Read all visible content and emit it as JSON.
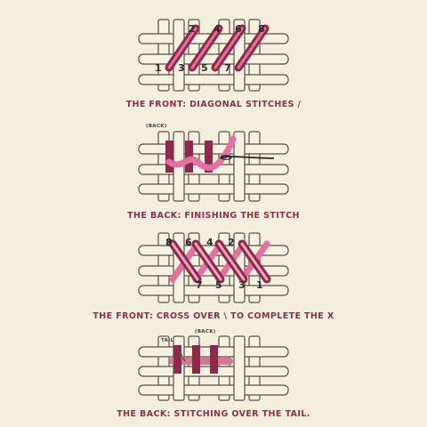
{
  "colors": {
    "background": "#f4efdc",
    "canvas_thread_fill": "#f6f1e0",
    "canvas_thread_stroke": "#5b4f49",
    "stitch_dark": "#8b2b4b",
    "stitch_light": "#e56fa0",
    "stitch_mid": "#d07a9a",
    "caption": "#8e2f4d",
    "needle": "#222222"
  },
  "panels": [
    {
      "id": "front-diagonal",
      "caption": "THE FRONT: DIAGONAL STITCHES /",
      "top_numbers": [
        "2",
        "4",
        "6",
        "8"
      ],
      "bottom_numbers": [
        "1",
        "3",
        "5",
        "7"
      ],
      "stitch_icon": "diagonal-forward-stitches"
    },
    {
      "id": "back-finishing",
      "caption": "THE BACK: FINISHING THE STITCH",
      "label": "(BACK)",
      "stitch_icon": "vertical-back-stitches-with-needle"
    },
    {
      "id": "front-cross",
      "caption": "THE FRONT: CROSS OVER \\ TO COMPLETE THE X",
      "top_numbers": [
        "8",
        "6",
        "4",
        "2"
      ],
      "bottom_numbers": [
        "7",
        "5",
        "3",
        "1"
      ],
      "stitch_icon": "cross-stitch-x"
    },
    {
      "id": "back-tail",
      "caption": "THE BACK: STITCHING OVER THE TAIL.",
      "label": "(BACK)",
      "tail_label": "TAIL",
      "stitch_icon": "vertical-back-stitches-over-tail"
    }
  ]
}
